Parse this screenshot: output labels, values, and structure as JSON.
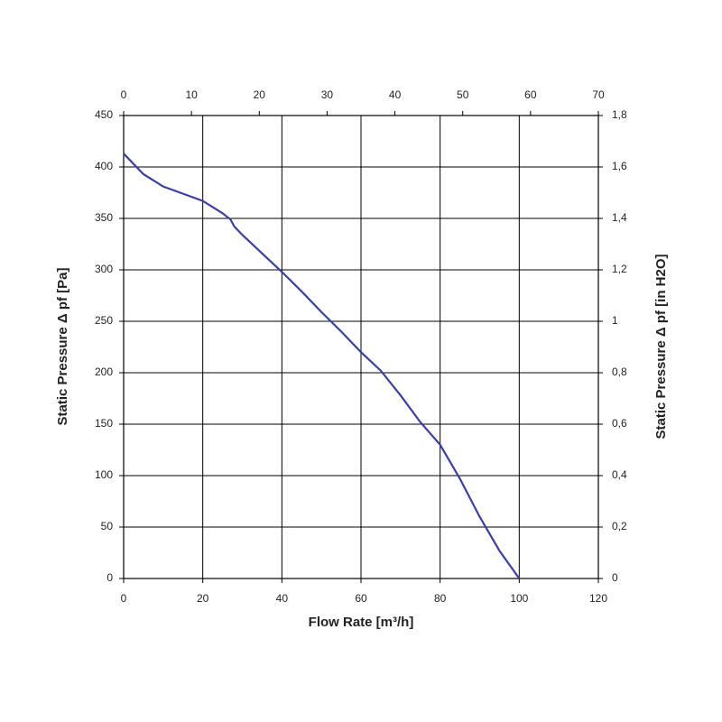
{
  "chart_data": {
    "type": "line",
    "xlabel": "Flow Rate [m³/h]",
    "ylabel": "Static Pressure Δ pf [Pa]",
    "y2label": "Static Pressure Δ pf [in H2O]",
    "x": [
      0,
      5,
      10,
      15,
      20,
      25,
      27,
      28,
      30,
      35,
      40,
      45,
      50,
      55,
      60,
      65,
      70,
      75,
      80,
      85,
      90,
      95,
      100
    ],
    "values": [
      413,
      393,
      381,
      374,
      367,
      355,
      349,
      342,
      334,
      316,
      298,
      279,
      259,
      240,
      220,
      202,
      178,
      152,
      130,
      97,
      60,
      27,
      0
    ],
    "color": "#3a3fa8",
    "xlim": [
      0,
      120
    ],
    "xticks": [
      0,
      20,
      40,
      60,
      80,
      100,
      120
    ],
    "x2lim": [
      0,
      70
    ],
    "x2ticks": [
      0,
      10,
      20,
      30,
      40,
      50,
      60,
      70
    ],
    "ylim": [
      0,
      450
    ],
    "yticks": [
      0,
      50,
      100,
      150,
      200,
      250,
      300,
      350,
      400,
      450
    ],
    "y2lim": [
      0,
      1.8
    ],
    "y2ticks": [
      0,
      {
        "value": 0.2,
        "label": "0,2"
      },
      {
        "value": 0.4,
        "label": "0,4"
      },
      {
        "value": 0.6,
        "label": "0,6"
      },
      {
        "value": 0.8,
        "label": "0,8"
      },
      1,
      {
        "value": 1.2,
        "label": "1,2"
      },
      {
        "value": 1.4,
        "label": "1,4"
      },
      {
        "value": 1.6,
        "label": "1,6"
      },
      {
        "value": 1.8,
        "label": "1,8"
      }
    ],
    "grid": true
  }
}
